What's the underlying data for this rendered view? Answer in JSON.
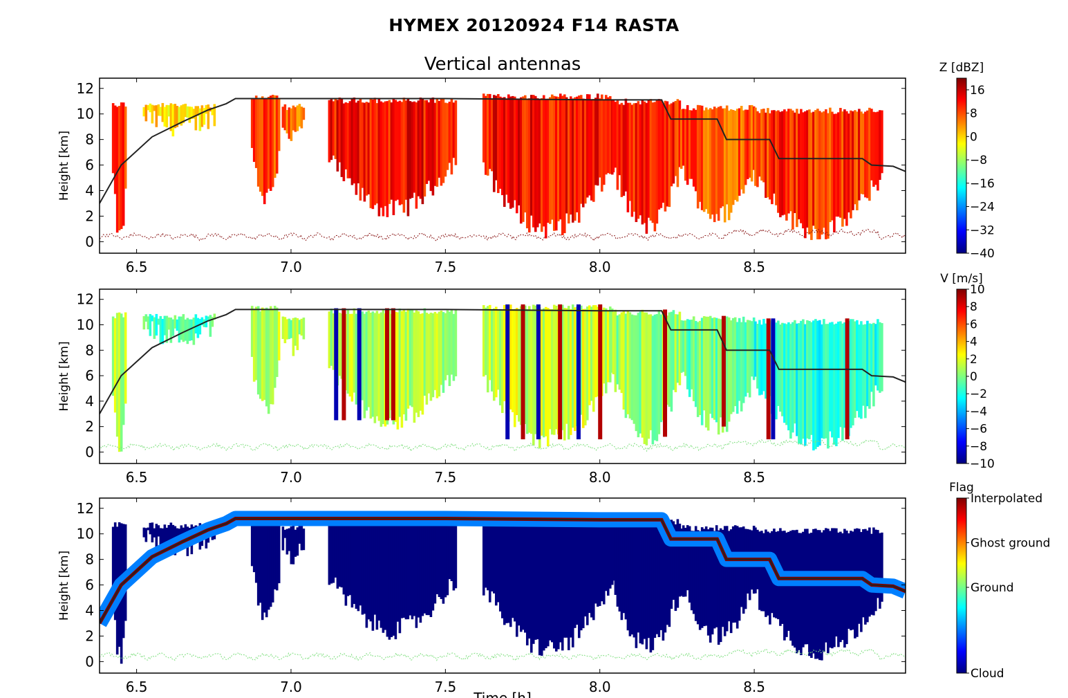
{
  "figure": {
    "suptitle": "HYMEX 20120924 F14 RASTA",
    "subtitle": "Vertical antennas",
    "xlabel_partial": "Time [h]"
  },
  "colors": {
    "jet": [
      "#00007f",
      "#0000ff",
      "#007fff",
      "#00ffff",
      "#7fff7f",
      "#ffff00",
      "#ff7f00",
      "#ff0000",
      "#7f0000"
    ],
    "flight_line": "#222222",
    "ground_z": "#8b1a1a",
    "ground_v": "#7fdf7f"
  },
  "chart_data": [
    {
      "type": "heatmap",
      "name": "Z",
      "ylabel": "Height [km]",
      "xlim": [
        6.38,
        8.99
      ],
      "ylim": [
        -0.9,
        12.8
      ],
      "xticks": [
        "6.5",
        "7.0",
        "7.5",
        "8.0",
        "8.5"
      ],
      "xtick_values": [
        6.5,
        7.0,
        7.5,
        8.0,
        8.5
      ],
      "yticks": [
        "0",
        "2",
        "4",
        "6",
        "8",
        "10",
        "12"
      ],
      "ytick_values": [
        0,
        2,
        4,
        6,
        8,
        10,
        12
      ],
      "colorbar": {
        "label": "Z [dBZ]",
        "range": [
          -40,
          20
        ],
        "ticks": [
          "16",
          "8",
          "0",
          "−8",
          "−16",
          "−24",
          "−32",
          "−40"
        ],
        "tick_values": [
          16,
          8,
          0,
          -8,
          -16,
          -24,
          -32,
          -40
        ]
      },
      "cloud_segments": [
        {
          "x": [
            6.42,
            6.465
          ],
          "bottom": 0.3,
          "top": 11.0,
          "value": 10
        },
        {
          "x": [
            6.52,
            6.75
          ],
          "bottom": 9.0,
          "top": 10.9,
          "value": 0
        },
        {
          "x": [
            6.87,
            6.96
          ],
          "bottom": 3.5,
          "top": 11.5,
          "value": 8
        },
        {
          "x": [
            6.97,
            7.04
          ],
          "bottom": 8.2,
          "top": 10.8,
          "value": 6
        },
        {
          "x": [
            7.12,
            7.53
          ],
          "bottom": 2.5,
          "top": 11.3,
          "value": 12
        },
        {
          "x": [
            7.62,
            8.04
          ],
          "bottom": 1.0,
          "top": 11.6,
          "value": 12
        },
        {
          "x": [
            8.04,
            8.26
          ],
          "bottom": 1.2,
          "top": 11.2,
          "value": 10
        },
        {
          "x": [
            8.26,
            8.5
          ],
          "bottom": 2.0,
          "top": 10.7,
          "value": 8
        },
        {
          "x": [
            8.5,
            8.91
          ],
          "bottom": 0.8,
          "top": 10.5,
          "value": 10
        }
      ],
      "flight_altitude": {
        "x": [
          6.38,
          6.45,
          6.55,
          6.65,
          6.73,
          6.79,
          6.82,
          7.0,
          7.5,
          8.0,
          8.2,
          8.23,
          8.38,
          8.41,
          8.55,
          8.58,
          8.85,
          8.88,
          8.95,
          8.99
        ],
        "y": [
          3.0,
          6.0,
          8.2,
          9.4,
          10.3,
          10.8,
          11.2,
          11.2,
          11.2,
          11.1,
          11.1,
          9.6,
          9.6,
          8.0,
          8.0,
          6.5,
          6.5,
          6.0,
          5.9,
          5.5
        ]
      }
    },
    {
      "type": "heatmap",
      "name": "V",
      "ylabel": "Height [km]",
      "xlim": [
        6.38,
        8.99
      ],
      "ylim": [
        -0.9,
        12.8
      ],
      "xticks": [
        "6.5",
        "7.0",
        "7.5",
        "8.0",
        "8.5"
      ],
      "xtick_values": [
        6.5,
        7.0,
        7.5,
        8.0,
        8.5
      ],
      "yticks": [
        "0",
        "2",
        "4",
        "6",
        "8",
        "10",
        "12"
      ],
      "ytick_values": [
        0,
        2,
        4,
        6,
        8,
        10,
        12
      ],
      "colorbar": {
        "label": "V [m/s]",
        "range": [
          -10,
          10
        ],
        "ticks": [
          "10",
          "8",
          "6",
          "4",
          "2",
          "0",
          "−2",
          "−4",
          "−6",
          "−8",
          "−10"
        ],
        "tick_values": [
          10,
          8,
          6,
          4,
          2,
          0,
          -2,
          -4,
          -6,
          -8,
          -10
        ]
      },
      "cloud_segments": [
        {
          "x": [
            6.42,
            6.465
          ],
          "bottom": 0.3,
          "top": 11.0,
          "value": 1
        },
        {
          "x": [
            6.52,
            6.75
          ],
          "bottom": 9.0,
          "top": 10.9,
          "value": -1
        },
        {
          "x": [
            6.87,
            6.96
          ],
          "bottom": 3.5,
          "top": 11.5,
          "value": 1
        },
        {
          "x": [
            6.97,
            7.04
          ],
          "bottom": 8.2,
          "top": 10.8,
          "value": 0.5
        },
        {
          "x": [
            7.12,
            7.53
          ],
          "bottom": 2.5,
          "top": 11.3,
          "value": 1
        },
        {
          "x": [
            7.62,
            8.04
          ],
          "bottom": 1.0,
          "top": 11.6,
          "value": 1.5
        },
        {
          "x": [
            8.04,
            8.26
          ],
          "bottom": 1.2,
          "top": 11.2,
          "value": 0.5
        },
        {
          "x": [
            8.26,
            8.5
          ],
          "bottom": 2.0,
          "top": 10.7,
          "value": -0.5
        },
        {
          "x": [
            8.5,
            8.91
          ],
          "bottom": 0.8,
          "top": 10.5,
          "value": -2
        }
      ],
      "velocity_streaks": [
        {
          "x": 7.145,
          "value": -9
        },
        {
          "x": 7.17,
          "value": 9
        },
        {
          "x": 7.22,
          "value": -9
        },
        {
          "x": 7.31,
          "value": 9
        },
        {
          "x": 7.33,
          "value": 9
        },
        {
          "x": 7.7,
          "value": -9
        },
        {
          "x": 7.75,
          "value": 9
        },
        {
          "x": 7.8,
          "value": -9
        },
        {
          "x": 7.87,
          "value": 9
        },
        {
          "x": 7.93,
          "value": -9
        },
        {
          "x": 8.0,
          "value": 9
        },
        {
          "x": 8.21,
          "value": 9
        },
        {
          "x": 8.4,
          "value": 9
        },
        {
          "x": 8.545,
          "value": 9
        },
        {
          "x": 8.56,
          "value": -9
        },
        {
          "x": 8.8,
          "value": 9
        }
      ],
      "flight_altitude": {
        "x": [
          6.38,
          6.45,
          6.55,
          6.65,
          6.73,
          6.79,
          6.82,
          7.0,
          7.5,
          8.0,
          8.2,
          8.23,
          8.38,
          8.41,
          8.55,
          8.58,
          8.85,
          8.88,
          8.95,
          8.99
        ],
        "y": [
          3.0,
          6.0,
          8.2,
          9.4,
          10.3,
          10.8,
          11.2,
          11.2,
          11.2,
          11.1,
          11.1,
          9.6,
          9.6,
          8.0,
          8.0,
          6.5,
          6.5,
          6.0,
          5.9,
          5.5
        ]
      }
    },
    {
      "type": "heatmap",
      "name": "Flag",
      "ylabel": "Height [km]",
      "xlim": [
        6.38,
        8.99
      ],
      "ylim": [
        -0.9,
        12.8
      ],
      "xticks": [
        "6.5",
        "7.0",
        "7.5",
        "8.0",
        "8.5"
      ],
      "xtick_values": [
        6.5,
        7.0,
        7.5,
        8.0,
        8.5
      ],
      "yticks": [
        "0",
        "2",
        "4",
        "6",
        "8",
        "10",
        "12"
      ],
      "ytick_values": [
        0,
        2,
        4,
        6,
        8,
        10,
        12
      ],
      "colorbar": {
        "label": "Flag",
        "categories": [
          "Interpolated",
          "Ghost ground",
          "Ground",
          "Cloud"
        ]
      },
      "cloud_segments": [
        {
          "x": [
            6.42,
            6.465
          ],
          "bottom": 0.3,
          "top": 11.0,
          "value": "Cloud"
        },
        {
          "x": [
            6.52,
            6.75
          ],
          "bottom": 9.0,
          "top": 10.9,
          "value": "Cloud"
        },
        {
          "x": [
            6.87,
            6.96
          ],
          "bottom": 3.5,
          "top": 11.5,
          "value": "Cloud"
        },
        {
          "x": [
            6.97,
            7.04
          ],
          "bottom": 8.2,
          "top": 10.8,
          "value": "Cloud"
        },
        {
          "x": [
            7.12,
            7.53
          ],
          "bottom": 2.5,
          "top": 11.3,
          "value": "Cloud"
        },
        {
          "x": [
            7.62,
            8.04
          ],
          "bottom": 1.0,
          "top": 11.6,
          "value": "Cloud"
        },
        {
          "x": [
            8.04,
            8.26
          ],
          "bottom": 1.2,
          "top": 11.2,
          "value": "Cloud"
        },
        {
          "x": [
            8.26,
            8.5
          ],
          "bottom": 2.0,
          "top": 10.7,
          "value": "Cloud"
        },
        {
          "x": [
            8.5,
            8.91
          ],
          "bottom": 0.8,
          "top": 10.5,
          "value": "Cloud"
        }
      ],
      "flight_altitude": {
        "x": [
          6.38,
          6.45,
          6.55,
          6.65,
          6.73,
          6.79,
          6.82,
          7.0,
          7.5,
          8.0,
          8.2,
          8.23,
          8.38,
          8.41,
          8.55,
          8.58,
          8.85,
          8.88,
          8.95,
          8.99
        ],
        "y": [
          3.0,
          6.0,
          8.2,
          9.4,
          10.3,
          10.8,
          11.2,
          11.2,
          11.2,
          11.1,
          11.1,
          9.6,
          9.6,
          8.0,
          8.0,
          6.5,
          6.5,
          6.0,
          5.9,
          5.5
        ]
      }
    }
  ]
}
